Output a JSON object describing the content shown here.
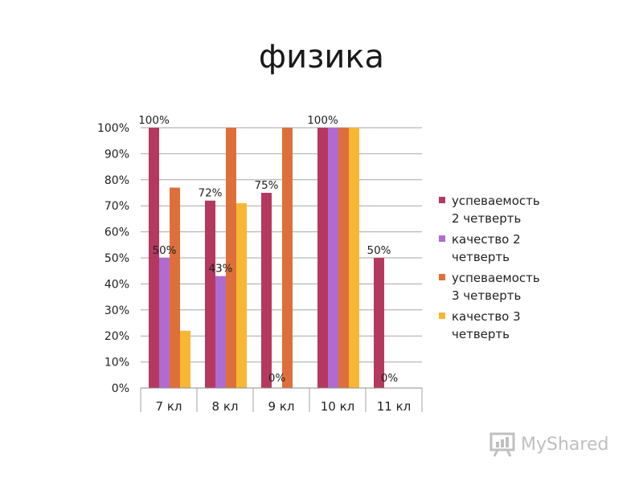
{
  "title": "физика",
  "watermark": "MyShared",
  "chart_data": {
    "type": "bar",
    "title": "",
    "xlabel": "",
    "ylabel": "",
    "ylim": [
      0,
      100
    ],
    "yticks": [
      "0%",
      "10%",
      "20%",
      "30%",
      "40%",
      "50%",
      "60%",
      "70%",
      "80%",
      "90%",
      "100%"
    ],
    "grid": true,
    "legend_position": "right",
    "categories": [
      "7 кл",
      "8 кл",
      "9 кл",
      "10 кл",
      "11 кл"
    ],
    "series": [
      {
        "name": "успеваемость 2 четверть",
        "color": "#b5395f",
        "values": [
          100,
          72,
          75,
          100,
          50
        ],
        "labels": [
          "100%",
          "72%",
          "75%",
          "100%",
          "50%"
        ]
      },
      {
        "name": "качество 2 четверть",
        "color": "#b06bd1",
        "values": [
          50,
          43,
          0,
          100,
          0
        ],
        "labels": [
          "50%",
          "43%",
          "0%",
          "",
          "0%"
        ]
      },
      {
        "name": "успеваемость 3 четверть",
        "color": "#df6f3a",
        "values": [
          77,
          100,
          100,
          100,
          null
        ],
        "labels": [
          "",
          "",
          "",
          "",
          ""
        ]
      },
      {
        "name": "качество 3 четверть",
        "color": "#f7b733",
        "values": [
          22,
          71,
          null,
          100,
          null
        ],
        "labels": [
          "",
          "",
          "",
          "",
          ""
        ]
      }
    ],
    "legend_lines": [
      [
        "успеваемость",
        "2 четверть"
      ],
      [
        "качество 2",
        "четверть"
      ],
      [
        "успеваемость",
        "3 четверть"
      ],
      [
        "качество 3",
        "четверть"
      ]
    ]
  }
}
